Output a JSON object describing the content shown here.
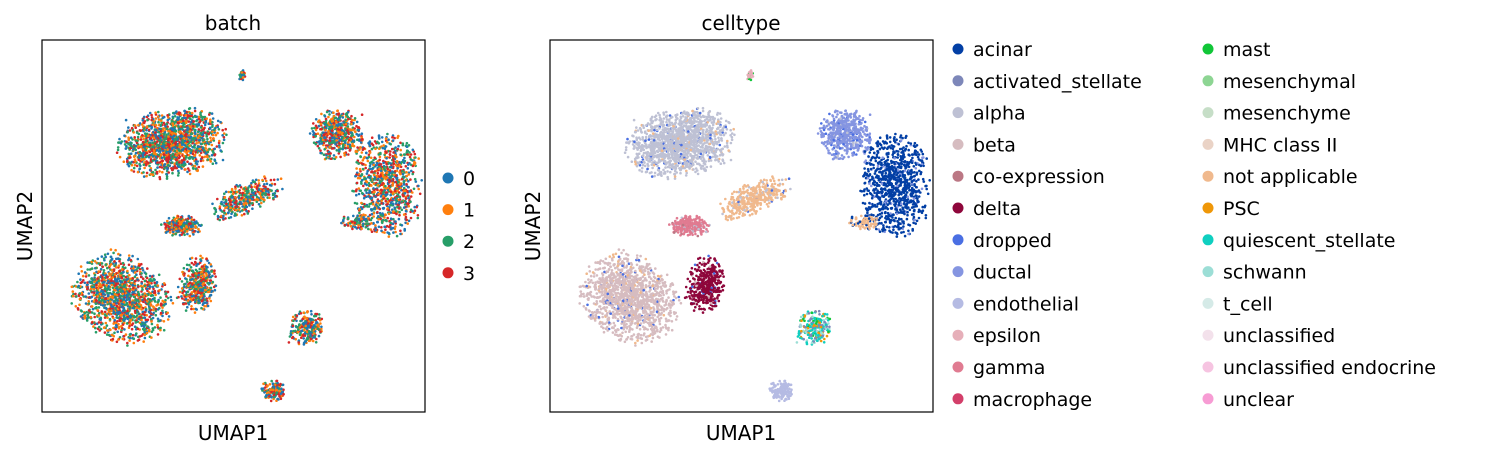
{
  "chart_data": [
    {
      "type": "scatter",
      "title": "batch",
      "xlabel": "UMAP1",
      "ylabel": "UMAP2",
      "grid": false,
      "legend_position": "right",
      "categories": [
        "0",
        "1",
        "2",
        "3"
      ],
      "colors": [
        "#1f77b4",
        "#ff7f0e",
        "#279e68",
        "#d62728"
      ]
    },
    {
      "type": "scatter",
      "title": "celltype",
      "xlabel": "UMAP1",
      "ylabel": "UMAP2",
      "grid": false,
      "legend_position": "right",
      "categories": [
        "acinar",
        "activated_stellate",
        "alpha",
        "beta",
        "co-expression",
        "delta",
        "dropped",
        "ductal",
        "endothelial",
        "epsilon",
        "gamma",
        "macrophage",
        "mast",
        "mesenchymal",
        "mesenchyme",
        "MHC class II",
        "not applicable",
        "PSC",
        "quiescent_stellate",
        "schwann",
        "t_cell",
        "unclassified",
        "unclassified endocrine",
        "unclear"
      ],
      "colors": [
        "#023fa5",
        "#7d87b9",
        "#bec1d4",
        "#d6bcc0",
        "#bb7784",
        "#8e063b",
        "#4a6fe3",
        "#8595e1",
        "#b5bbe3",
        "#e6afb9",
        "#e07b91",
        "#d33f6a",
        "#11c638",
        "#8dd593",
        "#c6dec7",
        "#ead3c6",
        "#f0b98d",
        "#ef9708",
        "#0fcfc0",
        "#9cded6",
        "#d5eae7",
        "#f3e1eb",
        "#f6c4e1",
        "#f79cd4"
      ]
    }
  ]
}
